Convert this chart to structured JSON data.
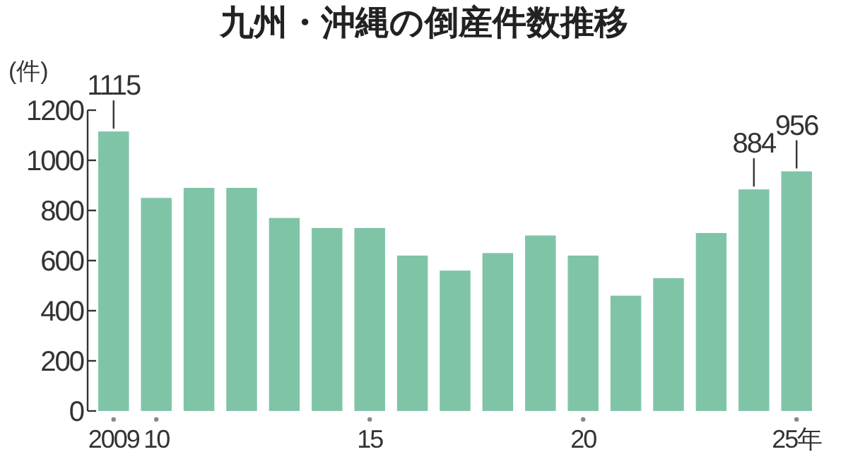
{
  "chart_data": {
    "type": "bar",
    "title": "九州・沖縄の倒産件数推移",
    "ylabel": "(件)",
    "categories": [
      "2009",
      "10",
      null,
      null,
      null,
      null,
      "15",
      null,
      null,
      null,
      null,
      "20",
      null,
      null,
      null,
      null,
      "25年"
    ],
    "values": [
      1115,
      850,
      890,
      890,
      770,
      730,
      730,
      620,
      560,
      630,
      700,
      620,
      460,
      530,
      710,
      884,
      956
    ],
    "value_labels": [
      "1115",
      null,
      null,
      null,
      null,
      null,
      null,
      null,
      null,
      null,
      null,
      null,
      null,
      null,
      null,
      "884",
      "956"
    ],
    "color": "#80c4a8",
    "ylim": [
      0,
      1200
    ],
    "yticks": [
      0,
      200,
      400,
      600,
      800,
      1000,
      1200
    ],
    "grid": false
  }
}
